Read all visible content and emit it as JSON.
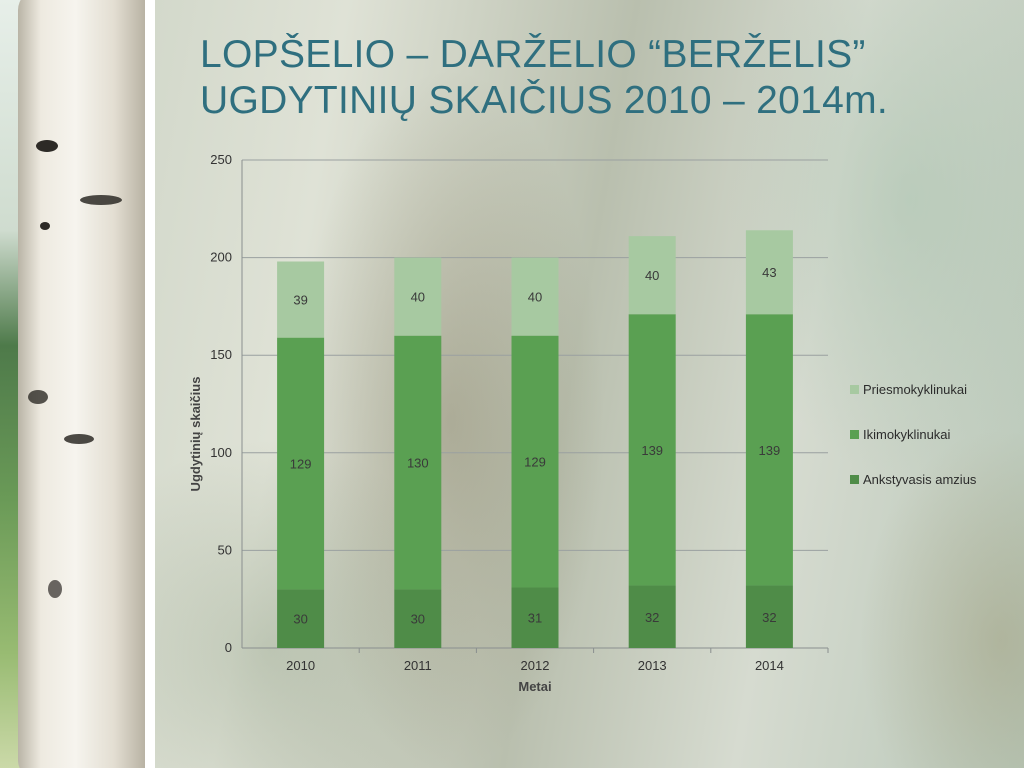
{
  "slide": {
    "title_line1": "LOPŠELIO – DARŽELIO “BERŽELIS”",
    "title_line2": "UGDYTINIŲ SKAIČIUS  2010 – 2014m."
  },
  "colors": {
    "series_bottom": "#4f8c48",
    "series_middle": "#5aa052",
    "series_top": "#a7c9a1",
    "title": "#2f6f7f"
  },
  "chart_data": {
    "type": "bar",
    "stacked": true,
    "categories": [
      "2010",
      "2011",
      "2012",
      "2013",
      "2014"
    ],
    "series": [
      {
        "name": "Ankstyvasis amzius",
        "values": [
          30,
          30,
          31,
          32,
          32
        ]
      },
      {
        "name": "Ikimokyklinukai",
        "values": [
          129,
          130,
          129,
          139,
          139
        ]
      },
      {
        "name": "Priesmokyklinukai",
        "values": [
          39,
          40,
          40,
          40,
          43
        ]
      }
    ],
    "xlabel": "Metai",
    "ylabel": "Ugdytinių skaičius",
    "ylim": [
      0,
      250
    ],
    "yticks": [
      "0",
      "50",
      "100",
      "150",
      "200",
      "250"
    ],
    "grid": true,
    "legend": "right"
  }
}
